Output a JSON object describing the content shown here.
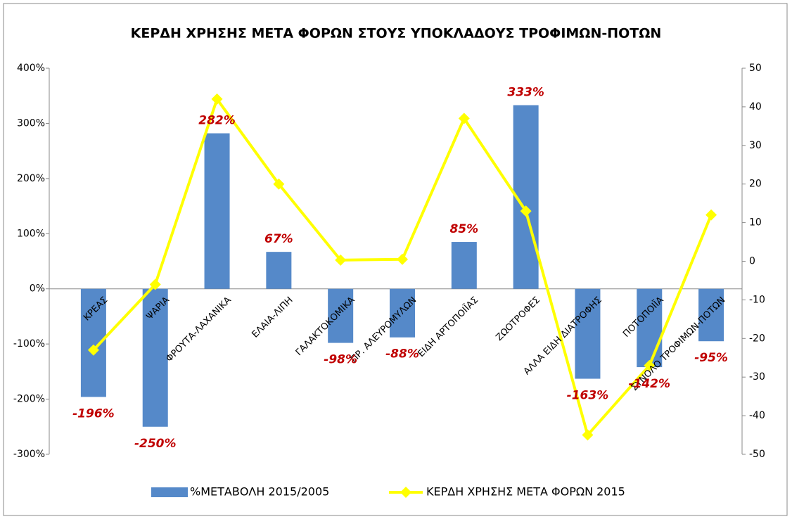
{
  "chart_data": {
    "type": "bar",
    "title": "ΚΕΡΔΗ ΧΡΗΣΗΣ ΜΕΤΑ ΦΟΡΩΝ ΣΤΟΥΣ ΥΠΟΚΛΑΔΟΥΣ ΤΡΟΦΙΜΩΝ-ΠΟΤΩΝ",
    "categories": [
      "ΚΡΕΑΣ",
      "ΨΑΡΙΑ",
      "ΦΡΟΥΤΑ-ΛΑΧΑΝΙΚΑ",
      "ΕΛΑΙΑ-ΛΙΠΗ",
      "ΓΑΛΑΚΤΟΚΟΜΙΚΑ",
      "ΠΡ. ΑΛΕΥΡΟΜΥΛΩΝ",
      "ΕΙΔΗ ΑΡΤΟΠΟΙΪΑΣ",
      "ΖΩΟΤΡΟΦΕΣ",
      "ΑΛΛΑ ΕΙΔΗ ΔΙΑΤΡΟΦΗΣ",
      "ΠΟΤΟΠΟΙΪΑ",
      "ΣΥΝΟΛΟ ΤΡΟΦΙΜΩΝ-ΠΟΤΩΝ"
    ],
    "series": [
      {
        "name": "%ΜΕΤΑΒΟΛΗ 2015/2005",
        "type": "bar",
        "color": "#5589c9",
        "values": [
          -196,
          -250,
          282,
          67,
          -98,
          -88,
          85,
          333,
          -163,
          -142,
          -95
        ],
        "value_labels": [
          "-196%",
          "-250%",
          "282%",
          "67%",
          "-98%",
          "-88%",
          "85%",
          "333%",
          "-163%",
          "-142%",
          "-95%"
        ]
      },
      {
        "name": "ΚΕΡΔΗ ΧΡΗΣΗΣ ΜΕΤΑ ΦΟΡΩΝ 2015",
        "type": "line",
        "axis": "y2",
        "color": "#ffff00",
        "values": [
          -23,
          -6,
          42,
          20,
          0.3,
          0.5,
          37,
          13,
          -45,
          -27,
          12
        ]
      }
    ],
    "ylim": [
      -300,
      400
    ],
    "yticks": [
      {
        "value": -300,
        "label": "-300%"
      },
      {
        "value": -200,
        "label": "-200%"
      },
      {
        "value": -100,
        "label": "-100%"
      },
      {
        "value": 0,
        "label": "0%"
      },
      {
        "value": 100,
        "label": "100%"
      },
      {
        "value": 200,
        "label": "200%"
      },
      {
        "value": 300,
        "label": "300%"
      },
      {
        "value": 400,
        "label": "400%"
      }
    ],
    "y2lim": [
      -50,
      50
    ],
    "y2ticks": [
      -50,
      -40,
      -30,
      -20,
      -10,
      0,
      10,
      20,
      30,
      40,
      50
    ],
    "legend": "bottom"
  }
}
